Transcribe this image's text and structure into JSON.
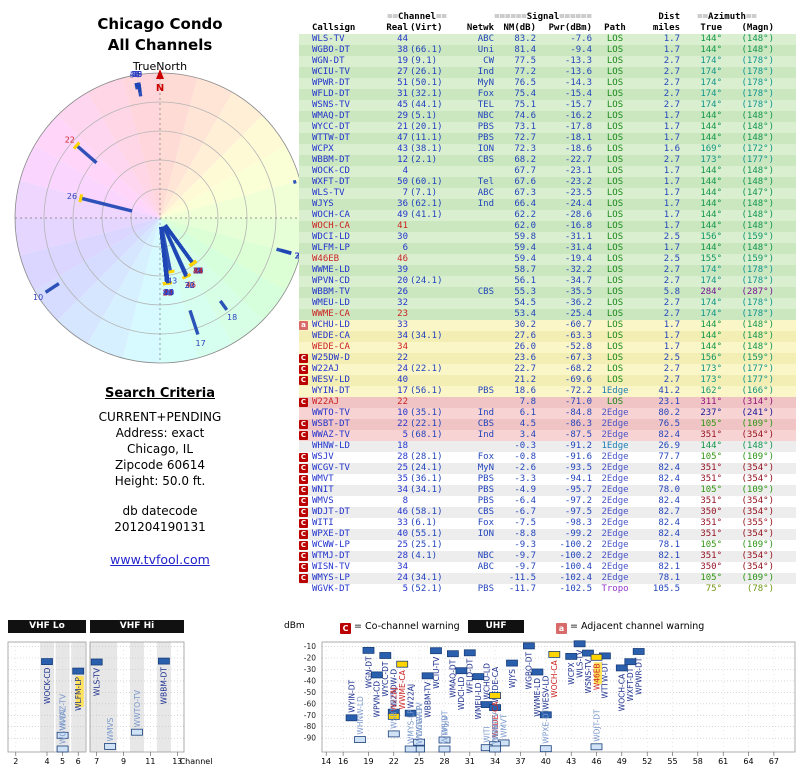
{
  "title": {
    "line1": "Chicago Condo",
    "line2": "All Channels"
  },
  "radar": {
    "true_north_label": "TrueNorth",
    "north_label": "N"
  },
  "criteria": {
    "heading": "Search Criteria",
    "lines": [
      "CURRENT+PENDING",
      "Address: exact",
      "Chicago, IL",
      "Zipcode 60614",
      "Height: 50.0 ft."
    ],
    "db_label": "db datecode",
    "db_value": "201204190131"
  },
  "link": "www.tvfool.com",
  "legend": {
    "co": "C",
    "co_text": "= Co-channel warning",
    "adj": "a",
    "adj_text": "= Adjacent channel warning"
  },
  "bands": {
    "vhf_lo": "VHF Lo",
    "vhf_hi": "VHF Hi",
    "uhf": "UHF",
    "dbm": "dBm",
    "channel": "Channel"
  },
  "axis": {
    "dbm_ticks": [
      -10,
      -20,
      -30,
      -40,
      -50,
      -60,
      -70,
      -80,
      -90
    ],
    "vhf_lo_ticks": [
      2,
      4,
      5,
      6
    ],
    "vhf_hi_ticks": [
      7,
      9,
      11,
      13
    ],
    "uhf_ticks": [
      14,
      16,
      19,
      22,
      25,
      28,
      31,
      34,
      37,
      40,
      43,
      46,
      49,
      52,
      55,
      58,
      61,
      64,
      67
    ],
    "occupied_vhf": [
      4,
      5,
      6,
      7,
      8,
      10,
      12
    ]
  },
  "colors": {
    "digital": "#2233cc",
    "analog": "#cc2222",
    "co_warn": "#bb0000",
    "adj_warn": "#d96a6a",
    "row_green": "#d9efcf",
    "row_yellow": "#fbf6c8",
    "row_pink": "#f8d3d3",
    "row_white": "#ffffff",
    "bar_strong": "#2a5fae",
    "bar_weak": "#cfe2f6",
    "bar_analog": "#ffd400",
    "path_los": "#1b8a1b",
    "path_1edge": "#1d7fb5",
    "path_2edge": "#4a55c8",
    "path_tropo": "#9135c8"
  },
  "table": {
    "group": {
      "channel": "==Channel==",
      "signal": "======Signal======",
      "dist": "Dist",
      "azimuth": "==Azimuth=="
    },
    "columns": [
      "Callsign",
      "Real",
      "(Virt)",
      "Netwk",
      "NM(dB)",
      "Pwr(dBm)",
      "Path",
      "miles",
      "True",
      "(Magn)"
    ],
    "rows": [
      {
        "cs": "WLS-TV",
        "re": 44,
        "vi": "",
        "nw": "ABC",
        "nm": 83.2,
        "pw": -7.6,
        "pa": "LOS",
        "di": 1.7,
        "tr": 144,
        "mg": 148,
        "an": false,
        "wn": ""
      },
      {
        "cs": "WGBO-DT",
        "re": 38,
        "vi": "66.1",
        "nw": "Uni",
        "nm": 81.4,
        "pw": -9.4,
        "pa": "LOS",
        "di": 1.7,
        "tr": 144,
        "mg": 148,
        "an": false,
        "wn": ""
      },
      {
        "cs": "WGN-DT",
        "re": 19,
        "vi": "9.1",
        "nw": "CW",
        "nm": 77.5,
        "pw": -13.3,
        "pa": "LOS",
        "di": 2.7,
        "tr": 174,
        "mg": 178,
        "an": false,
        "wn": ""
      },
      {
        "cs": "WCIU-TV",
        "re": 27,
        "vi": "26.1",
        "nw": "Ind",
        "nm": 77.2,
        "pw": -13.6,
        "pa": "LOS",
        "di": 2.7,
        "tr": 174,
        "mg": 178,
        "an": false,
        "wn": ""
      },
      {
        "cs": "WPWR-DT",
        "re": 51,
        "vi": "50.1",
        "nw": "MyN",
        "nm": 76.5,
        "pw": -14.3,
        "pa": "LOS",
        "di": 2.7,
        "tr": 174,
        "mg": 178,
        "an": false,
        "wn": ""
      },
      {
        "cs": "WFLD-DT",
        "re": 31,
        "vi": "32.1",
        "nw": "Fox",
        "nm": 75.4,
        "pw": -15.4,
        "pa": "LOS",
        "di": 2.7,
        "tr": 174,
        "mg": 178,
        "an": false,
        "wn": ""
      },
      {
        "cs": "WSNS-TV",
        "re": 45,
        "vi": "44.1",
        "nw": "TEL",
        "nm": 75.1,
        "pw": -15.7,
        "pa": "LOS",
        "di": 2.7,
        "tr": 174,
        "mg": 178,
        "an": false,
        "wn": ""
      },
      {
        "cs": "WMAQ-DT",
        "re": 29,
        "vi": "5.1",
        "nw": "NBC",
        "nm": 74.6,
        "pw": -16.2,
        "pa": "LOS",
        "di": 1.7,
        "tr": 144,
        "mg": 148,
        "an": false,
        "wn": ""
      },
      {
        "cs": "WYCC-DT",
        "re": 21,
        "vi": "20.1",
        "nw": "PBS",
        "nm": 73.1,
        "pw": -17.8,
        "pa": "LOS",
        "di": 1.7,
        "tr": 144,
        "mg": 148,
        "an": false,
        "wn": ""
      },
      {
        "cs": "WTTW-DT",
        "re": 47,
        "vi": "11.1",
        "nw": "PBS",
        "nm": 72.7,
        "pw": -18.1,
        "pa": "LOS",
        "di": 1.7,
        "tr": 144,
        "mg": 148,
        "an": false,
        "wn": ""
      },
      {
        "cs": "WCPX",
        "re": 43,
        "vi": "38.1",
        "nw": "ION",
        "nm": 72.3,
        "pw": -18.6,
        "pa": "LOS",
        "di": 1.6,
        "tr": 169,
        "mg": 172,
        "an": false,
        "wn": ""
      },
      {
        "cs": "WBBM-DT",
        "re": 12,
        "vi": "2.1",
        "nw": "CBS",
        "nm": 68.2,
        "pw": -22.7,
        "pa": "LOS",
        "di": 2.7,
        "tr": 173,
        "mg": 177,
        "an": false,
        "wn": ""
      },
      {
        "cs": "WOCK-CD",
        "re": 4,
        "vi": "",
        "nw": "",
        "nm": 67.7,
        "pw": -23.1,
        "pa": "LOS",
        "di": 1.7,
        "tr": 144,
        "mg": 148,
        "an": false,
        "wn": ""
      },
      {
        "cs": "WXFT-DT",
        "re": 50,
        "vi": "60.1",
        "nw": "Tel",
        "nm": 67.6,
        "pw": -23.2,
        "pa": "LOS",
        "di": 1.7,
        "tr": 144,
        "mg": 148,
        "an": false,
        "wn": ""
      },
      {
        "cs": "WLS-TV",
        "re": 7,
        "vi": "7.1",
        "nw": "ABC",
        "nm": 67.3,
        "pw": -23.5,
        "pa": "LOS",
        "di": 1.7,
        "tr": 144,
        "mg": 147,
        "an": false,
        "wn": ""
      },
      {
        "cs": "WJYS",
        "re": 36,
        "vi": "62.1",
        "nw": "Ind",
        "nm": 66.4,
        "pw": -24.4,
        "pa": "LOS",
        "di": 1.7,
        "tr": 144,
        "mg": 148,
        "an": false,
        "wn": ""
      },
      {
        "cs": "WOCH-CA",
        "re": 49,
        "vi": "41.1",
        "nw": "",
        "nm": 62.2,
        "pw": -28.6,
        "pa": "LOS",
        "di": 1.7,
        "tr": 144,
        "mg": 148,
        "an": false,
        "wn": ""
      },
      {
        "cs": "WOCH-CA",
        "re": 41,
        "vi": "",
        "nw": "",
        "nm": 62.0,
        "pw": -16.8,
        "pa": "LOS",
        "di": 1.7,
        "tr": 144,
        "mg": 148,
        "an": true,
        "wn": ""
      },
      {
        "cs": "WDCI-LD",
        "re": 30,
        "vi": "",
        "nw": "",
        "nm": 59.8,
        "pw": -31.1,
        "pa": "LOS",
        "di": 2.5,
        "tr": 156,
        "mg": 159,
        "an": false,
        "wn": ""
      },
      {
        "cs": "WLFM-LP",
        "re": 6,
        "vi": "",
        "nw": "",
        "nm": 59.4,
        "pw": -31.4,
        "pa": "LOS",
        "di": 1.7,
        "tr": 144,
        "mg": 148,
        "an": false,
        "wn": "",
        "hl": true
      },
      {
        "cs": "W46EB",
        "re": 46,
        "vi": "",
        "nw": "",
        "nm": 59.4,
        "pw": -19.4,
        "pa": "LOS",
        "di": 2.5,
        "tr": 155,
        "mg": 159,
        "an": true,
        "wn": "",
        "hl": true
      },
      {
        "cs": "WWME-LD",
        "re": 39,
        "vi": "",
        "nw": "",
        "nm": 58.7,
        "pw": -32.2,
        "pa": "LOS",
        "di": 2.7,
        "tr": 174,
        "mg": 178,
        "an": false,
        "wn": ""
      },
      {
        "cs": "WPVN-CD",
        "re": 20,
        "vi": "24.1",
        "nw": "",
        "nm": 56.1,
        "pw": -34.7,
        "pa": "LOS",
        "di": 2.7,
        "tr": 174,
        "mg": 178,
        "an": false,
        "wn": ""
      },
      {
        "cs": "WBBM-TV",
        "re": 26,
        "vi": "",
        "nw": "CBS",
        "nm": 55.3,
        "pw": -35.5,
        "pa": "LOS",
        "di": 5.8,
        "tr": 284,
        "mg": 287,
        "an": false,
        "wn": ""
      },
      {
        "cs": "WMEU-LD",
        "re": 32,
        "vi": "",
        "nw": "",
        "nm": 54.5,
        "pw": -36.2,
        "pa": "LOS",
        "di": 2.7,
        "tr": 174,
        "mg": 178,
        "an": false,
        "wn": ""
      },
      {
        "cs": "WWME-CA",
        "re": 23,
        "vi": "",
        "nw": "",
        "nm": 53.4,
        "pw": -25.4,
        "pa": "LOS",
        "di": 2.7,
        "tr": 174,
        "mg": 178,
        "an": true,
        "wn": ""
      },
      {
        "cs": "WCHU-LD",
        "re": 33,
        "vi": "",
        "nw": "",
        "nm": 30.2,
        "pw": -60.7,
        "pa": "LOS",
        "di": 1.7,
        "tr": 144,
        "mg": 148,
        "an": false,
        "wn": "a"
      },
      {
        "cs": "WEDE-CA",
        "re": 34,
        "vi": "34.1",
        "nw": "",
        "nm": 27.6,
        "pw": -63.3,
        "pa": "LOS",
        "di": 1.7,
        "tr": 144,
        "mg": 148,
        "an": false,
        "wn": ""
      },
      {
        "cs": "WEDE-CA",
        "re": 34,
        "vi": "",
        "nw": "",
        "nm": 26.0,
        "pw": -52.8,
        "pa": "LOS",
        "di": 1.7,
        "tr": 144,
        "mg": 148,
        "an": true,
        "wn": ""
      },
      {
        "cs": "W25DW-D",
        "re": 22,
        "vi": "",
        "nw": "",
        "nm": 23.6,
        "pw": -67.3,
        "pa": "LOS",
        "di": 2.5,
        "tr": 156,
        "mg": 159,
        "an": false,
        "wn": "C"
      },
      {
        "cs": "W22AJ",
        "re": 24,
        "vi": "22.1",
        "nw": "",
        "nm": 22.7,
        "pw": -68.2,
        "pa": "LOS",
        "di": 2.7,
        "tr": 173,
        "mg": 177,
        "an": false,
        "wn": "C"
      },
      {
        "cs": "WESV-LD",
        "re": 40,
        "vi": "",
        "nw": "",
        "nm": 21.2,
        "pw": -69.6,
        "pa": "LOS",
        "di": 2.7,
        "tr": 173,
        "mg": 177,
        "an": false,
        "wn": "C"
      },
      {
        "cs": "WYIN-DT",
        "re": 17,
        "vi": "56.1",
        "nw": "PBS",
        "nm": 18.6,
        "pw": -72.2,
        "pa": "1Edge",
        "di": 41.2,
        "tr": 162,
        "mg": 166,
        "an": false,
        "wn": ""
      },
      {
        "cs": "W22AJ",
        "re": 22,
        "vi": "",
        "nw": "",
        "nm": 7.8,
        "pw": -71.0,
        "pa": "LOS",
        "di": 23.1,
        "tr": 311,
        "mg": 314,
        "an": true,
        "wn": "C"
      },
      {
        "cs": "WWTO-TV",
        "re": 10,
        "vi": "35.1",
        "nw": "Ind",
        "nm": 6.1,
        "pw": -84.8,
        "pa": "2Edge",
        "di": 80.2,
        "tr": 237,
        "mg": 241,
        "an": false,
        "wn": ""
      },
      {
        "cs": "WSBT-DT",
        "re": 22,
        "vi": "22.1",
        "nw": "CBS",
        "nm": 4.5,
        "pw": -86.3,
        "pa": "2Edge",
        "di": 76.5,
        "tr": 105,
        "mg": 109,
        "an": false,
        "wn": "C"
      },
      {
        "cs": "WWAZ-TV",
        "re": 5,
        "vi": "68.1",
        "nw": "Ind",
        "nm": 3.4,
        "pw": -87.5,
        "pa": "2Edge",
        "di": 82.4,
        "tr": 351,
        "mg": 354,
        "an": false,
        "wn": "C"
      },
      {
        "cs": "WHNW-LD",
        "re": 18,
        "vi": "",
        "nw": "",
        "nm": -0.3,
        "pw": -91.2,
        "pa": "1Edge",
        "di": 26.9,
        "tr": 144,
        "mg": 148,
        "an": false,
        "wn": ""
      },
      {
        "cs": "WSJV",
        "re": 28,
        "vi": "28.1",
        "nw": "Fox",
        "nm": -0.8,
        "pw": -91.6,
        "pa": "2Edge",
        "di": 77.7,
        "tr": 105,
        "mg": 109,
        "an": false,
        "wn": "C"
      },
      {
        "cs": "WCGV-TV",
        "re": 25,
        "vi": "24.1",
        "nw": "MyN",
        "nm": -2.6,
        "pw": -93.5,
        "pa": "2Edge",
        "di": 82.4,
        "tr": 351,
        "mg": 354,
        "an": false,
        "wn": "C"
      },
      {
        "cs": "WMVT",
        "re": 35,
        "vi": "36.1",
        "nw": "PBS",
        "nm": -3.3,
        "pw": -94.1,
        "pa": "2Edge",
        "di": 82.4,
        "tr": 351,
        "mg": 354,
        "an": false,
        "wn": "C"
      },
      {
        "cs": "WNIT",
        "re": 34,
        "vi": "34.1",
        "nw": "PBS",
        "nm": -4.9,
        "pw": -95.7,
        "pa": "2Edge",
        "di": 78.0,
        "tr": 105,
        "mg": 109,
        "an": false,
        "wn": "C"
      },
      {
        "cs": "WMVS",
        "re": 8,
        "vi": "",
        "nw": "PBS",
        "nm": -6.4,
        "pw": -97.2,
        "pa": "2Edge",
        "di": 82.4,
        "tr": 351,
        "mg": 354,
        "an": false,
        "wn": "C"
      },
      {
        "cs": "WDJT-DT",
        "re": 46,
        "vi": "58.1",
        "nw": "CBS",
        "nm": -6.7,
        "pw": -97.5,
        "pa": "2Edge",
        "di": 82.7,
        "tr": 350,
        "mg": 354,
        "an": false,
        "wn": "C"
      },
      {
        "cs": "WITI",
        "re": 33,
        "vi": "6.1",
        "nw": "Fox",
        "nm": -7.5,
        "pw": -98.3,
        "pa": "2Edge",
        "di": 82.4,
        "tr": 351,
        "mg": 355,
        "an": false,
        "wn": "C"
      },
      {
        "cs": "WPXE-DT",
        "re": 40,
        "vi": "55.1",
        "nw": "ION",
        "nm": -8.8,
        "pw": -99.2,
        "pa": "2Edge",
        "di": 82.4,
        "tr": 351,
        "mg": 354,
        "an": false,
        "wn": "C"
      },
      {
        "cs": "WCWW-LP",
        "re": 25,
        "vi": "25.1",
        "nw": "",
        "nm": -9.3,
        "pw": -100.2,
        "pa": "2Edge",
        "di": 78.1,
        "tr": 105,
        "mg": 109,
        "an": false,
        "wn": "C"
      },
      {
        "cs": "WTMJ-DT",
        "re": 28,
        "vi": "4.1",
        "nw": "NBC",
        "nm": -9.7,
        "pw": -100.2,
        "pa": "2Edge",
        "di": 82.1,
        "tr": 351,
        "mg": 354,
        "an": false,
        "wn": "C"
      },
      {
        "cs": "WISN-TV",
        "re": 34,
        "vi": "",
        "nw": "ABC",
        "nm": -9.7,
        "pw": -100.4,
        "pa": "2Edge",
        "di": 82.1,
        "tr": 350,
        "mg": 354,
        "an": false,
        "wn": "C"
      },
      {
        "cs": "WMYS-LP",
        "re": 24,
        "vi": "34.1",
        "nw": "",
        "nm": -11.5,
        "pw": -102.4,
        "pa": "2Edge",
        "di": 78.1,
        "tr": 105,
        "mg": 109,
        "an": false,
        "wn": "C"
      },
      {
        "cs": "WGVK-DT",
        "re": 5,
        "vi": "52.1",
        "nw": "PBS",
        "nm": -11.7,
        "pw": -102.5,
        "pa": "Tropo",
        "di": 105.5,
        "tr": 75,
        "mg": 78,
        "an": false,
        "wn": ""
      }
    ]
  }
}
